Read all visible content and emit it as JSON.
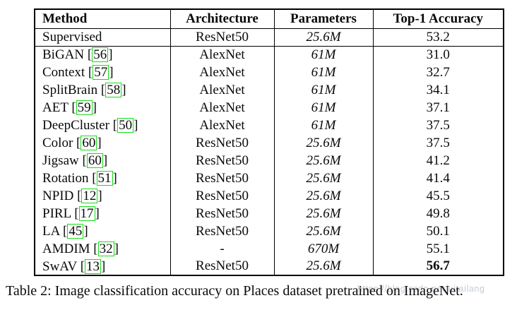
{
  "colors": {
    "background": "#ffffff",
    "text": "#0a0a0a",
    "citation_box_green": "#15dd15",
    "watermark": "#b9c3cf"
  },
  "table": {
    "headers": [
      "Method",
      "Architecture",
      "Parameters",
      "Top-1 Accuracy"
    ],
    "rows": [
      {
        "method": "Supervised",
        "citation": null,
        "architecture": "ResNet50",
        "parameters": "25.6M",
        "accuracy": "53.2",
        "accuracy_bold": false,
        "section_end": true
      },
      {
        "method": "BiGAN",
        "citation": "56",
        "architecture": "AlexNet",
        "parameters": "61M",
        "accuracy": "31.0",
        "accuracy_bold": false,
        "section_end": false
      },
      {
        "method": "Context",
        "citation": "57",
        "architecture": "AlexNet",
        "parameters": "61M",
        "accuracy": "32.7",
        "accuracy_bold": false,
        "section_end": false
      },
      {
        "method": "SplitBrain",
        "citation": "58",
        "architecture": "AlexNet",
        "parameters": "61M",
        "accuracy": "34.1",
        "accuracy_bold": false,
        "section_end": false
      },
      {
        "method": "AET",
        "citation": "59",
        "architecture": "AlexNet",
        "parameters": "61M",
        "accuracy": "37.1",
        "accuracy_bold": false,
        "section_end": false
      },
      {
        "method": "DeepCluster",
        "citation": "50",
        "architecture": "AlexNet",
        "parameters": "61M",
        "accuracy": "37.5",
        "accuracy_bold": false,
        "section_end": false
      },
      {
        "method": "Color",
        "citation": "60",
        "architecture": "ResNet50",
        "parameters": "25.6M",
        "accuracy": "37.5",
        "accuracy_bold": false,
        "section_end": false
      },
      {
        "method": "Jigsaw",
        "citation": "60",
        "architecture": "ResNet50",
        "parameters": "25.6M",
        "accuracy": "41.2",
        "accuracy_bold": false,
        "section_end": false
      },
      {
        "method": "Rotation",
        "citation": "51",
        "architecture": "ResNet50",
        "parameters": "25.6M",
        "accuracy": "41.4",
        "accuracy_bold": false,
        "section_end": false
      },
      {
        "method": "NPID",
        "citation": "12",
        "architecture": "ResNet50",
        "parameters": "25.6M",
        "accuracy": "45.5",
        "accuracy_bold": false,
        "section_end": false
      },
      {
        "method": "PIRL",
        "citation": "17",
        "architecture": "ResNet50",
        "parameters": "25.6M",
        "accuracy": "49.8",
        "accuracy_bold": false,
        "section_end": false
      },
      {
        "method": "LA",
        "citation": "45",
        "architecture": "ResNet50",
        "parameters": "25.6M",
        "accuracy": "50.1",
        "accuracy_bold": false,
        "section_end": false
      },
      {
        "method": "AMDIM",
        "citation": "32",
        "architecture": "-",
        "parameters": "670M",
        "accuracy": "55.1",
        "accuracy_bold": false,
        "section_end": false
      },
      {
        "method": "SwAV",
        "citation": "13",
        "architecture": "ResNet50",
        "parameters": "25.6M",
        "accuracy": "56.7",
        "accuracy_bold": true,
        "section_end": false
      }
    ]
  },
  "caption": {
    "text": "Table 2: Image classification accuracy on Places dataset pretrained on ImageNet."
  },
  "watermark": {
    "text": "https://blog.csdn.net/uitailang"
  }
}
